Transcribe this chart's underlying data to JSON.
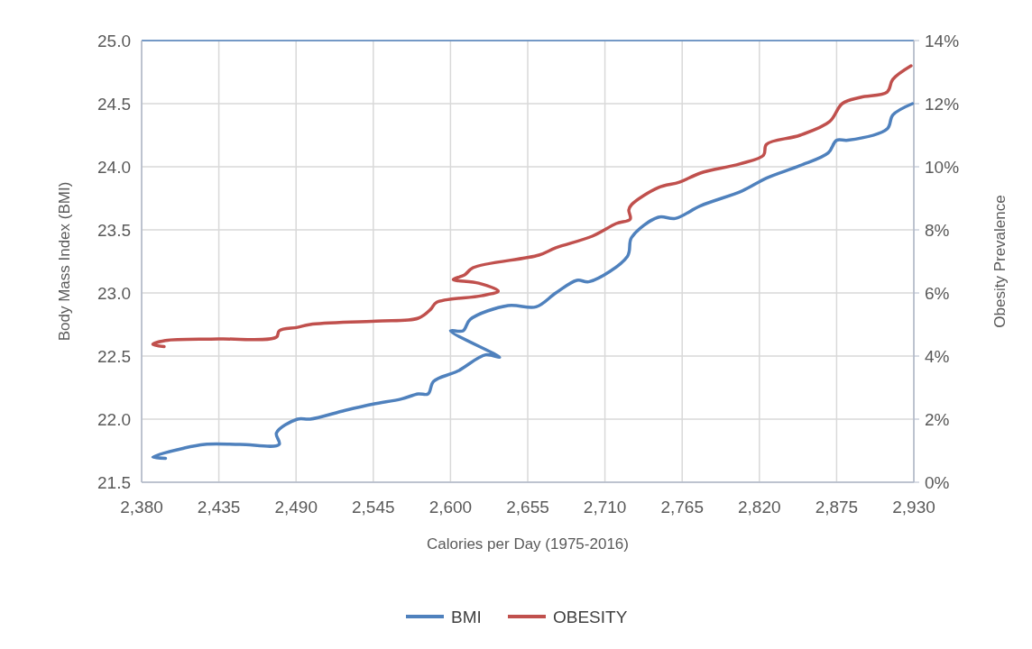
{
  "chart_data": {
    "type": "line",
    "xlabel": "Calories per Day (1975-2016)",
    "ylabel": "Body Mass Index (BMI)",
    "y2label": "Obesity Prevalence",
    "xlim": [
      2380,
      2930
    ],
    "xticks": [
      {
        "value": 2380,
        "label": "2,380"
      },
      {
        "value": 2435,
        "label": "2,435"
      },
      {
        "value": 2490,
        "label": "2,490"
      },
      {
        "value": 2545,
        "label": "2,545"
      },
      {
        "value": 2600,
        "label": "2,600"
      },
      {
        "value": 2655,
        "label": "2,655"
      },
      {
        "value": 2710,
        "label": "2,710"
      },
      {
        "value": 2765,
        "label": "2,765"
      },
      {
        "value": 2820,
        "label": "2,820"
      },
      {
        "value": 2875,
        "label": "2,875"
      },
      {
        "value": 2930,
        "label": "2,930"
      }
    ],
    "ylim": [
      21.5,
      25
    ],
    "yticks": [
      {
        "value": 21.5,
        "label": "21.5"
      },
      {
        "value": 22,
        "label": "22.0"
      },
      {
        "value": 22.5,
        "label": "22.5"
      },
      {
        "value": 23,
        "label": "23.0"
      },
      {
        "value": 23.5,
        "label": "23.5"
      },
      {
        "value": 24,
        "label": "24.0"
      },
      {
        "value": 24.5,
        "label": "24.5"
      },
      {
        "value": 25,
        "label": "25.0"
      }
    ],
    "y2lim": [
      0,
      14
    ],
    "y2ticks": [
      {
        "value": 0,
        "label": "0%"
      },
      {
        "value": 2,
        "label": "2%"
      },
      {
        "value": 4,
        "label": "4%"
      },
      {
        "value": 6,
        "label": "6%"
      },
      {
        "value": 8,
        "label": "8%"
      },
      {
        "value": 10,
        "label": "10%"
      },
      {
        "value": 12,
        "label": "12%"
      },
      {
        "value": 14,
        "label": "14%"
      }
    ],
    "grid": true,
    "legend": "bottom",
    "marker": "none",
    "line_style": "solid",
    "series": [
      {
        "name": "BMI",
        "color": "#4f81bd",
        "x": [
          2397,
          2388,
          2410,
          2425,
          2450,
          2478,
          2476,
          2491,
          2500,
          2525,
          2545,
          2565,
          2577,
          2584,
          2588,
          2605,
          2625,
          2635,
          2600,
          2609,
          2614,
          2641,
          2661,
          2675,
          2690,
          2699,
          2726,
          2729,
          2748,
          2760,
          2778,
          2808,
          2825,
          2849,
          2869,
          2875,
          2883,
          2911,
          2915,
          2929
        ],
        "values": [
          21.69,
          21.7,
          21.77,
          21.8,
          21.8,
          21.8,
          21.89,
          22.0,
          22.0,
          22.07,
          22.12,
          22.16,
          22.2,
          22.2,
          22.3,
          22.38,
          22.51,
          22.49,
          22.7,
          22.7,
          22.79,
          22.9,
          22.89,
          23.0,
          23.1,
          23.09,
          23.29,
          23.44,
          23.6,
          23.59,
          23.69,
          23.81,
          23.91,
          24.01,
          24.11,
          24.21,
          24.21,
          24.3,
          24.41,
          24.5
        ]
      },
      {
        "name": "OBESITY",
        "color": "#c0504d",
        "axis": "y2",
        "x": [
          2396,
          2388,
          2397,
          2435,
          2476,
          2478,
          2491,
          2500,
          2547,
          2577,
          2586,
          2590,
          2622,
          2634,
          2620,
          2602,
          2610,
          2616,
          2663,
          2675,
          2701,
          2718,
          2728,
          2727,
          2729,
          2748,
          2763,
          2778,
          2806,
          2823,
          2825,
          2849,
          2870,
          2879,
          2892,
          2911,
          2915,
          2928
        ],
        "values": [
          4.3,
          4.37,
          4.49,
          4.54,
          4.6,
          4.8,
          4.91,
          5.0,
          5.11,
          5.2,
          5.49,
          5.7,
          5.91,
          6.06,
          6.31,
          6.43,
          6.57,
          6.8,
          7.2,
          7.43,
          7.8,
          8.2,
          8.34,
          8.63,
          8.8,
          9.34,
          9.51,
          9.8,
          10.09,
          10.37,
          10.71,
          11.0,
          11.43,
          12.0,
          12.2,
          12.37,
          12.77,
          13.2
        ]
      }
    ]
  }
}
